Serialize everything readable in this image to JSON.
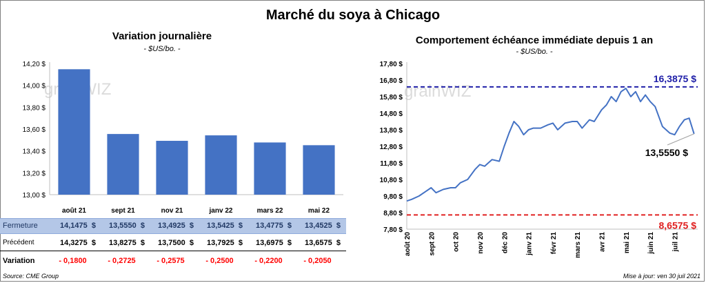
{
  "title": "Marché du soya à Chicago",
  "left": {
    "subtitle": "Variation journalière",
    "unit": "- $US/bo. -",
    "watermark": "grainWIZ"
  },
  "right": {
    "subtitle": "Comportement échéance immédiate depuis 1 an",
    "unit": "- $US/bo. -",
    "watermark": "grainWIZ",
    "current_label": "13,5550 $"
  },
  "table": {
    "rows": [
      {
        "label": "Fermeture",
        "cells": [
          "14,1475  $",
          "13,5550  $",
          "13,4925  $",
          "13,5425  $",
          "13,4775  $",
          "13,4525  $"
        ]
      },
      {
        "label": "Précédent",
        "cells": [
          "14,3275  $",
          "13,8275  $",
          "13,7500  $",
          "13,7925  $",
          "13,6975  $",
          "13,6575  $"
        ]
      },
      {
        "label": "Variation",
        "cells": [
          "- 0,1800",
          "- 0,2725",
          "- 0,2575",
          "- 0,2500",
          "- 0,2200",
          "- 0,2050"
        ]
      }
    ]
  },
  "footer": {
    "source": "Source: CME Group",
    "updated": "Mise à jour: ven 30 juil 2021"
  },
  "colors": {
    "bar": "#4472c4",
    "line": "#4472c4",
    "high": "#1f1fa8",
    "low": "#e02020",
    "row_highlight": "#b4c7e7",
    "negative": "#ff0000"
  },
  "chart_data": [
    {
      "type": "bar",
      "categories": [
        "août 21",
        "sept 21",
        "nov 21",
        "janv 22",
        "mars 22",
        "mai 22"
      ],
      "values": [
        14.1475,
        13.555,
        13.4925,
        13.5425,
        13.4775,
        13.4525
      ],
      "yticks": [
        "13,00 $",
        "13,20 $",
        "13,40 $",
        "13,60 $",
        "13,80 $",
        "14,00 $",
        "14,20 $"
      ],
      "ylim": [
        13.0,
        14.2
      ],
      "grid": false
    },
    {
      "type": "line",
      "x_labels": [
        "août 20",
        "sept 20",
        "oct 20",
        "nov 20",
        "déc 20",
        "janv 21",
        "févr 21",
        "mars 21",
        "avr 21",
        "mai 21",
        "juin 21",
        "juil 21"
      ],
      "yticks": [
        "7,80 $",
        "8,80 $",
        "9,80 $",
        "10,80 $",
        "11,80 $",
        "12,80 $",
        "13,80 $",
        "14,80 $",
        "15,80 $",
        "16,80 $",
        "17,80 $"
      ],
      "ylim": [
        7.8,
        17.8
      ],
      "x": [
        0,
        0.2,
        0.5,
        0.8,
        1.0,
        1.2,
        1.5,
        1.8,
        2.0,
        2.2,
        2.5,
        2.8,
        3.0,
        3.2,
        3.5,
        3.8,
        4.0,
        4.2,
        4.4,
        4.6,
        4.8,
        5.0,
        5.2,
        5.5,
        5.8,
        6.0,
        6.2,
        6.5,
        6.8,
        7.0,
        7.2,
        7.5,
        7.7,
        8.0,
        8.2,
        8.4,
        8.6,
        8.8,
        9.0,
        9.2,
        9.4,
        9.6,
        9.8,
        10.0,
        10.2,
        10.5,
        10.8,
        11.0,
        11.2,
        11.4,
        11.6,
        11.8
      ],
      "values": [
        9.5,
        9.6,
        9.8,
        10.1,
        10.3,
        10.0,
        10.2,
        10.3,
        10.3,
        10.6,
        10.8,
        11.4,
        11.7,
        11.6,
        12.0,
        11.9,
        12.8,
        13.6,
        14.3,
        14.0,
        13.5,
        13.8,
        13.9,
        13.9,
        14.1,
        14.2,
        13.8,
        14.2,
        14.3,
        14.3,
        13.9,
        14.4,
        14.3,
        15.0,
        15.3,
        15.8,
        15.5,
        16.1,
        16.3,
        15.8,
        16.1,
        15.5,
        15.9,
        15.5,
        15.2,
        14.0,
        13.6,
        13.5,
        14.0,
        14.4,
        14.5,
        13.555
      ],
      "reference_lines": [
        {
          "value": 16.3875,
          "label": "16,3875 $"
        },
        {
          "value": 8.6575,
          "label": "8,6575 $"
        }
      ]
    }
  ]
}
